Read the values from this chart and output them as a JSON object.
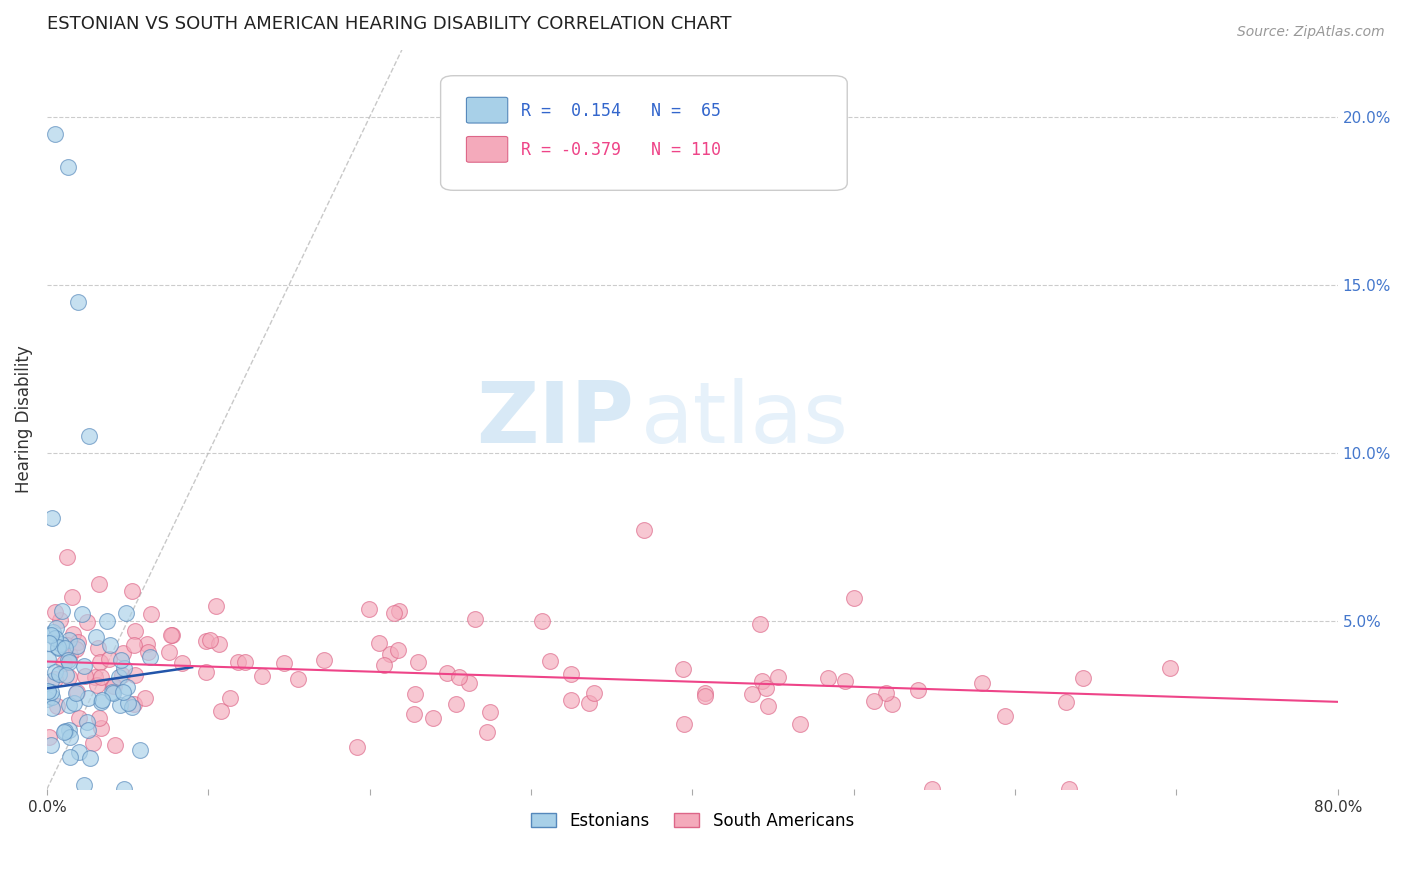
{
  "title": "ESTONIAN VS SOUTH AMERICAN HEARING DISABILITY CORRELATION CHART",
  "source": "Source: ZipAtlas.com",
  "ylabel": "Hearing Disability",
  "xlim": [
    0.0,
    0.8
  ],
  "ylim": [
    0.0,
    0.22
  ],
  "blue_color": "#A8D0E8",
  "pink_color": "#F4AABB",
  "blue_edge": "#5588BB",
  "pink_edge": "#DD6688",
  "trend_blue": "#2255AA",
  "trend_pink": "#EE4488",
  "diag_color": "#BBBBBB",
  "label1": "Estonians",
  "label2": "South Americans",
  "watermark_zip": "ZIP",
  "watermark_atlas": "atlas",
  "blue_r": 0.154,
  "blue_n": 65,
  "pink_r": -0.379,
  "pink_n": 110,
  "blue_slope": 0.07,
  "blue_intercept": 0.03,
  "pink_slope": -0.015,
  "pink_intercept": 0.038,
  "seed_blue": 42,
  "seed_pink": 123
}
